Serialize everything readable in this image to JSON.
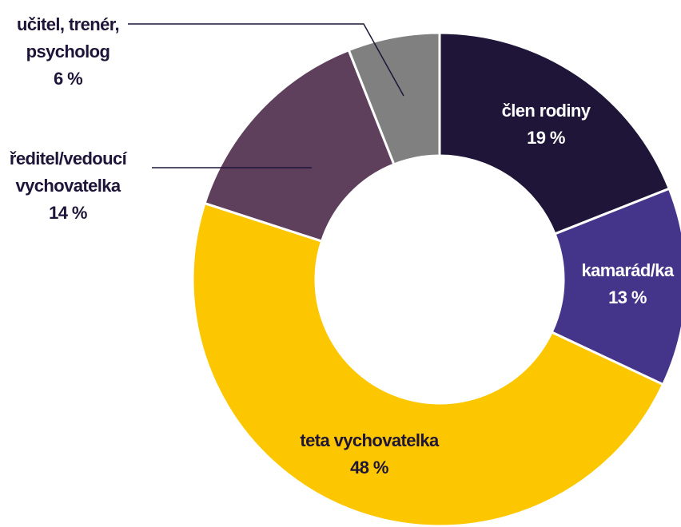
{
  "chart_data": {
    "type": "donut",
    "categories": [
      "člen rodiny",
      "kamarád/ka",
      "teta vychovatelka",
      "ředitel/vedoucí\nvychovatelka",
      "učitel, trenér,\npsycholog"
    ],
    "values": [
      19,
      13,
      48,
      14,
      6
    ],
    "value_labels": [
      "19 %",
      "13 %",
      "48 %",
      "14 %",
      "6 %"
    ],
    "colors": [
      "#1e1538",
      "#45358a",
      "#fdc700",
      "#5e3f5c",
      "#808080"
    ]
  }
}
